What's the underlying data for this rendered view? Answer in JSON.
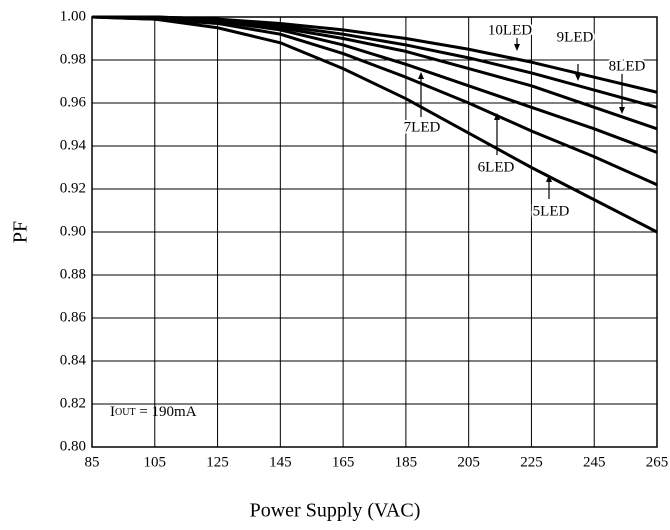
{
  "chart_data": {
    "type": "line",
    "x_label": "Power Supply (VAC)",
    "y_label": "PF",
    "x": [
      85,
      105,
      125,
      145,
      165,
      185,
      205,
      225,
      245,
      265
    ],
    "series": [
      {
        "name": "10LED",
        "color": "#000000",
        "values": [
          1.0,
          1.0,
          0.999,
          0.997,
          0.994,
          0.99,
          0.985,
          0.979,
          0.972,
          0.965
        ]
      },
      {
        "name": "9LED",
        "color": "#000000",
        "values": [
          1.0,
          1.0,
          0.999,
          0.996,
          0.992,
          0.987,
          0.981,
          0.974,
          0.966,
          0.958
        ]
      },
      {
        "name": "8LED",
        "color": "#000000",
        "values": [
          1.0,
          1.0,
          0.998,
          0.995,
          0.99,
          0.984,
          0.976,
          0.968,
          0.958,
          0.948
        ]
      },
      {
        "name": "7LED",
        "color": "#000000",
        "values": [
          1.0,
          1.0,
          0.998,
          0.994,
          0.987,
          0.978,
          0.968,
          0.958,
          0.948,
          0.937
        ]
      },
      {
        "name": "6LED",
        "color": "#000000",
        "values": [
          1.0,
          0.999,
          0.997,
          0.992,
          0.983,
          0.972,
          0.96,
          0.947,
          0.935,
          0.922
        ]
      },
      {
        "name": "5LED",
        "color": "#000000",
        "values": [
          1.0,
          0.999,
          0.995,
          0.988,
          0.976,
          0.962,
          0.946,
          0.93,
          0.915,
          0.9
        ]
      }
    ],
    "xlim": [
      85,
      265
    ],
    "xticks": [
      85,
      105,
      125,
      145,
      165,
      185,
      205,
      225,
      245,
      265
    ],
    "ylim": [
      0.8,
      1.0
    ],
    "yticks": [
      {
        "value": 0.8,
        "label": "0.80"
      },
      {
        "value": 0.82,
        "label": "0.82"
      },
      {
        "value": 0.84,
        "label": "0.84"
      },
      {
        "value": 0.86,
        "label": "0.86"
      },
      {
        "value": 0.88,
        "label": "0.88"
      },
      {
        "value": 0.9,
        "label": "0.90"
      },
      {
        "value": 0.92,
        "label": "0.92"
      },
      {
        "value": 0.94,
        "label": "0.94"
      },
      {
        "value": 0.96,
        "label": "0.96"
      },
      {
        "value": 0.98,
        "label": "0.98"
      },
      {
        "value": 1.0,
        "label": "1.00"
      }
    ],
    "grid": true,
    "note": {
      "main": "I",
      "sub": "OUT",
      "rest": " = 190mA"
    }
  }
}
